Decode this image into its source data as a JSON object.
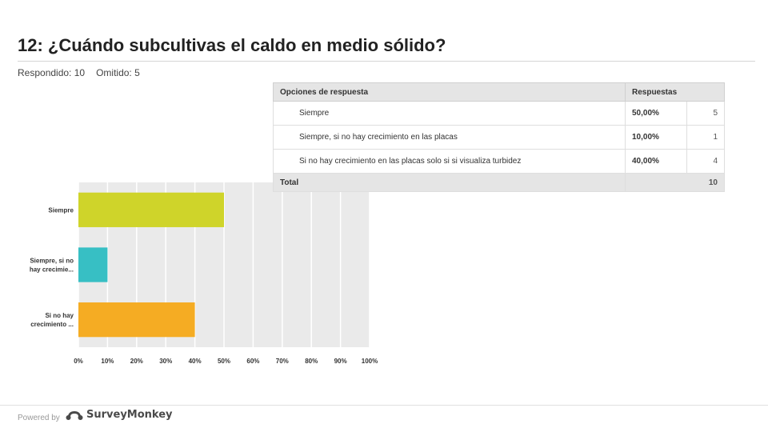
{
  "header": {
    "title": "12: ¿Cuándo subcultivas el caldo en medio sólido?",
    "answered_label": "Respondido: 10",
    "skipped_label": "Omitido: 5"
  },
  "table": {
    "col_option": "Opciones de respuesta",
    "col_responses": "Respuestas",
    "rows": [
      {
        "option": "Siempre",
        "percent": "50,00%",
        "count": "5"
      },
      {
        "option": "Siempre, si no hay crecimiento en las placas",
        "percent": "10,00%",
        "count": "1"
      },
      {
        "option": "Si no hay crecimiento en las placas solo si si visualiza turbidez",
        "percent": "40,00%",
        "count": "4"
      }
    ],
    "total_label": "Total",
    "total_value": "10"
  },
  "chart_data": {
    "type": "bar",
    "orientation": "horizontal",
    "categories": [
      [
        "Siempre"
      ],
      [
        "Siempre, si no",
        "hay crecimie..."
      ],
      [
        "Si no hay",
        "crecimiento ..."
      ]
    ],
    "values": [
      50,
      10,
      40
    ],
    "colors": [
      "#cfd42a",
      "#37bfc4",
      "#f5ac23"
    ],
    "xlim": [
      0,
      100
    ],
    "xticks": [
      "0%",
      "10%",
      "20%",
      "30%",
      "40%",
      "50%",
      "60%",
      "70%",
      "80%",
      "90%",
      "100%"
    ],
    "grid": true,
    "background": "#eaeaea"
  },
  "footer": {
    "powered_by": "Powered by",
    "brand": "SurveyMonkey"
  }
}
